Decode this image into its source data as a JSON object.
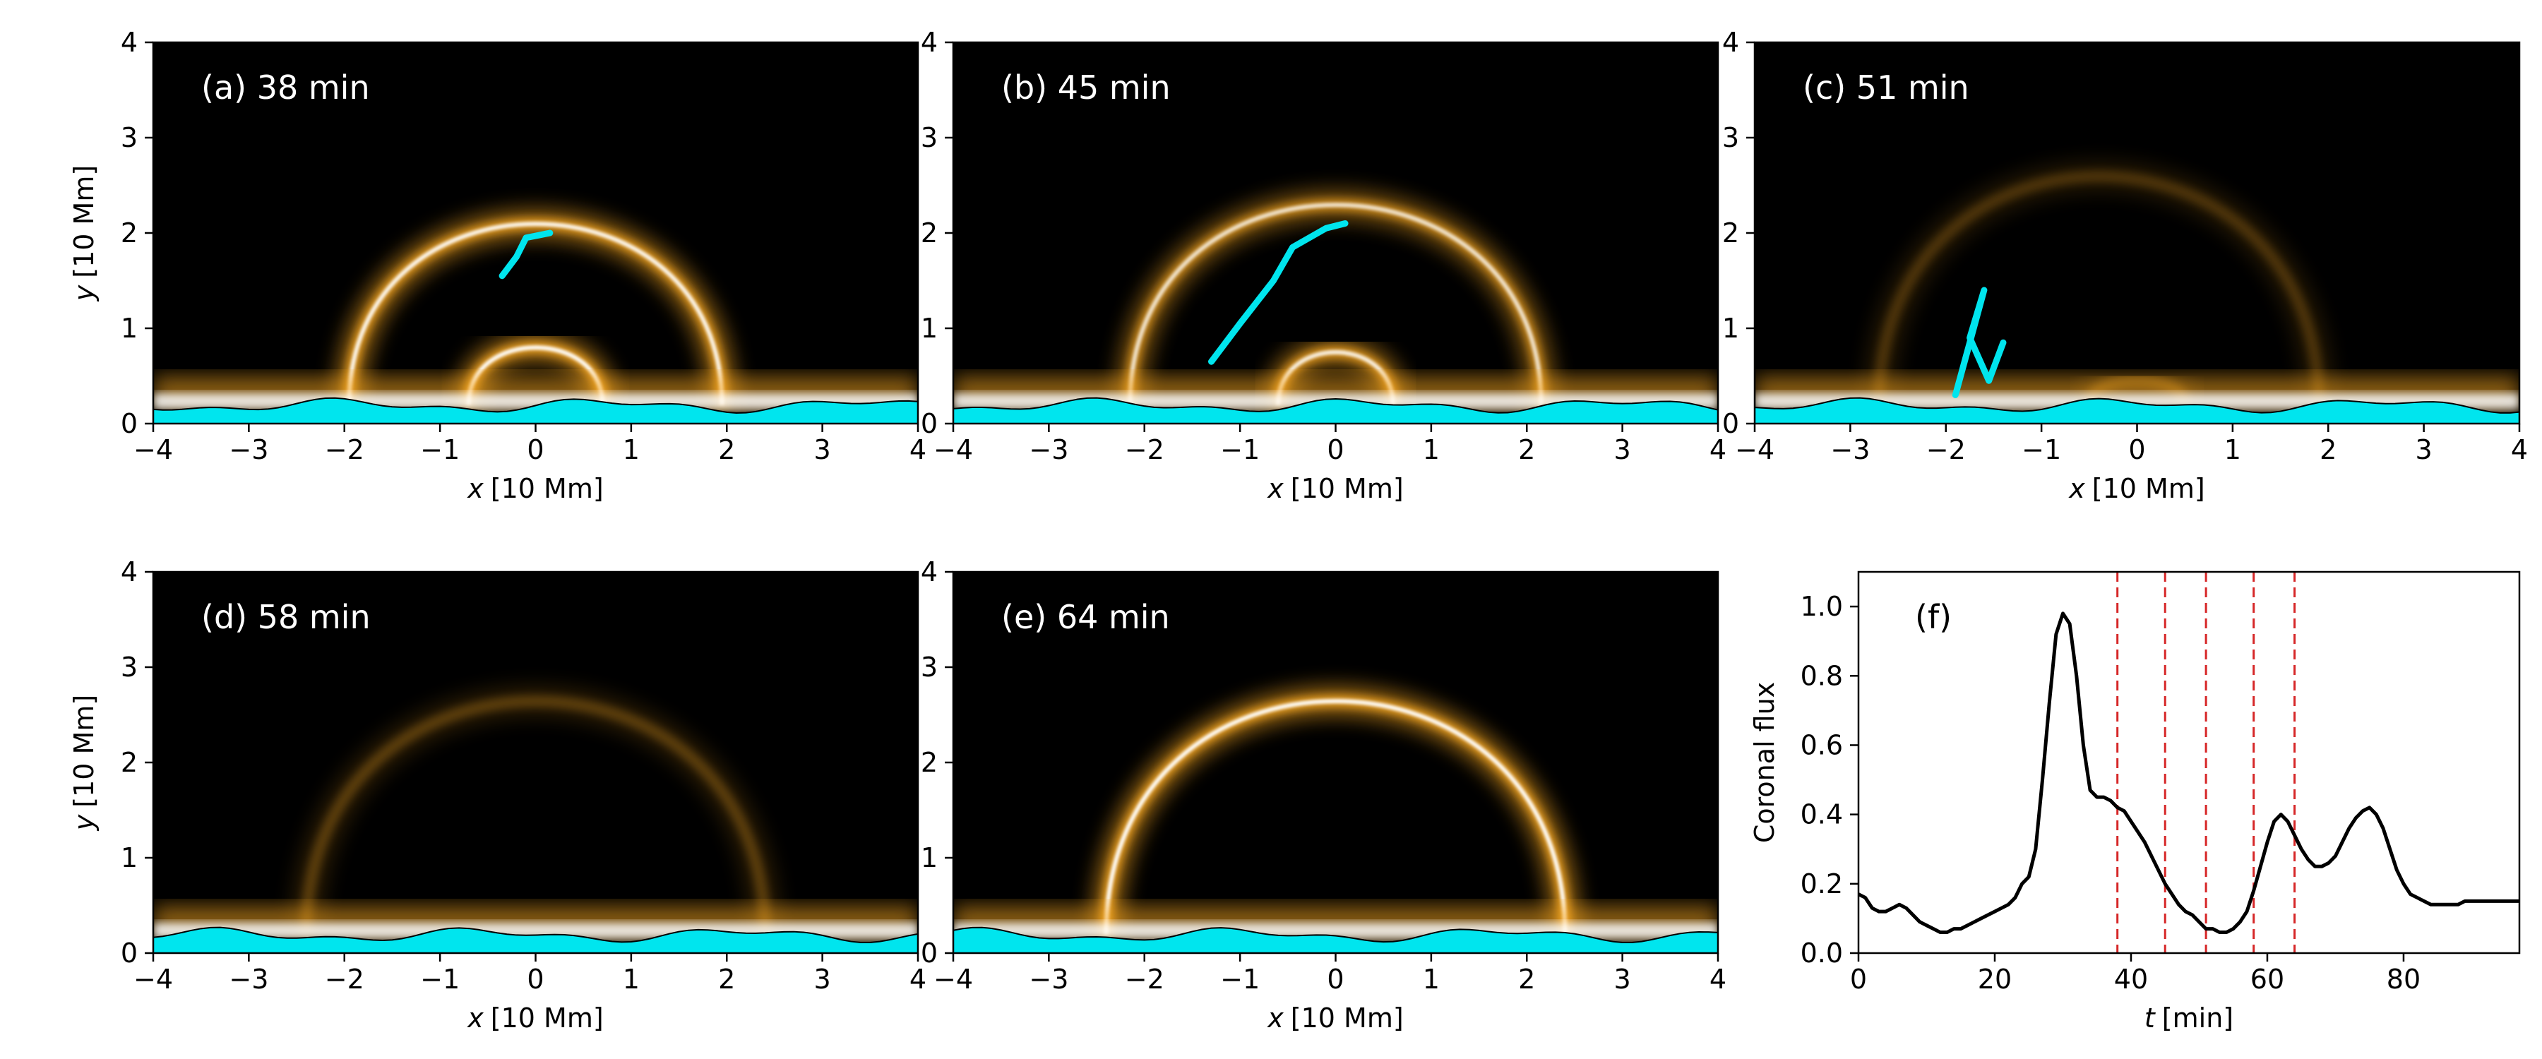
{
  "chart_data": {
    "panels": [
      {
        "id": "a",
        "type": "heatmap",
        "label": "(a) 38 min",
        "time_min": 38,
        "xlabel_var": "x",
        "xlabel_unit": "[10 Mm]",
        "ylabel_var": "y",
        "ylabel_unit": "[10 Mm]",
        "xlim": [
          -4,
          4
        ],
        "ylim": [
          0,
          4
        ],
        "xticks": [
          "−4",
          "−3",
          "−2",
          "−1",
          "0",
          "1",
          "2",
          "3",
          "4"
        ],
        "yticks": [
          "0",
          "1",
          "2",
          "3",
          "4"
        ],
        "loops": [
          {
            "center_x": 0,
            "height": 2.1,
            "half_width": 1.95,
            "brightness": 0.95
          },
          {
            "center_x": 0,
            "height": 0.8,
            "half_width": 0.7,
            "brightness": 1.0
          }
        ],
        "cyan_feature": [
          [
            -0.35,
            1.55
          ],
          [
            -0.2,
            1.75
          ],
          [
            -0.1,
            1.95
          ],
          [
            0.15,
            2.0
          ]
        ]
      },
      {
        "id": "b",
        "type": "heatmap",
        "label": "(b) 45 min",
        "time_min": 45,
        "xlabel_var": "x",
        "xlabel_unit": "[10 Mm]",
        "ylabel_var": "y",
        "ylabel_unit": "[10 Mm]",
        "xlim": [
          -4,
          4
        ],
        "ylim": [
          0,
          4
        ],
        "xticks": [
          "−4",
          "−3",
          "−2",
          "−1",
          "0",
          "1",
          "2",
          "3",
          "4"
        ],
        "yticks": [
          "0",
          "1",
          "2",
          "3",
          "4"
        ],
        "loops": [
          {
            "center_x": 0,
            "height": 2.3,
            "half_width": 2.15,
            "brightness": 0.8
          },
          {
            "center_x": 0,
            "height": 0.75,
            "half_width": 0.6,
            "brightness": 0.9
          }
        ],
        "cyan_feature": [
          [
            -1.3,
            0.65
          ],
          [
            -1.0,
            1.05
          ],
          [
            -0.65,
            1.5
          ],
          [
            -0.45,
            1.85
          ],
          [
            -0.1,
            2.05
          ],
          [
            0.1,
            2.1
          ]
        ]
      },
      {
        "id": "c",
        "type": "heatmap",
        "label": "(c) 51 min",
        "time_min": 51,
        "xlabel_var": "x",
        "xlabel_unit": "[10 Mm]",
        "ylabel_var": "y",
        "ylabel_unit": "[10 Mm]",
        "xlim": [
          -4,
          4
        ],
        "ylim": [
          0,
          4
        ],
        "xticks": [
          "−4",
          "−3",
          "−2",
          "−1",
          "0",
          "1",
          "2",
          "3",
          "4"
        ],
        "yticks": [
          "0",
          "1",
          "2",
          "3",
          "4"
        ],
        "loops": [
          {
            "center_x": -0.4,
            "height": 2.6,
            "half_width": 2.3,
            "brightness": 0.25
          },
          {
            "center_x": 0,
            "height": 0.45,
            "half_width": 0.5,
            "brightness": 0.35
          }
        ],
        "cyan_feature": [
          [
            -1.9,
            0.3
          ],
          [
            -1.75,
            0.85
          ],
          [
            -1.6,
            1.4
          ],
          [
            -1.75,
            0.9
          ],
          [
            -1.55,
            0.45
          ],
          [
            -1.4,
            0.85
          ]
        ]
      },
      {
        "id": "d",
        "type": "heatmap",
        "label": "(d) 58 min",
        "time_min": 58,
        "xlabel_var": "x",
        "xlabel_unit": "[10 Mm]",
        "ylabel_var": "y",
        "ylabel_unit": "[10 Mm]",
        "xlim": [
          -4,
          4
        ],
        "ylim": [
          0,
          4
        ],
        "xticks": [
          "−4",
          "−3",
          "−2",
          "−1",
          "0",
          "1",
          "2",
          "3",
          "4"
        ],
        "yticks": [
          "0",
          "1",
          "2",
          "3",
          "4"
        ],
        "loops": [
          {
            "center_x": 0,
            "height": 2.65,
            "half_width": 2.4,
            "brightness": 0.3
          }
        ],
        "cyan_feature": []
      },
      {
        "id": "e",
        "type": "heatmap",
        "label": "(e) 64 min",
        "time_min": 64,
        "xlabel_var": "x",
        "xlabel_unit": "[10 Mm]",
        "ylabel_var": "y",
        "ylabel_unit": "[10 Mm]",
        "xlim": [
          -4,
          4
        ],
        "ylim": [
          0,
          4
        ],
        "xticks": [
          "−4",
          "−3",
          "−2",
          "−1",
          "0",
          "1",
          "2",
          "3",
          "4"
        ],
        "yticks": [
          "0",
          "1",
          "2",
          "3",
          "4"
        ],
        "loops": [
          {
            "center_x": 0,
            "height": 2.65,
            "half_width": 2.4,
            "brightness": 1.0
          }
        ],
        "cyan_feature": []
      }
    ],
    "line_panel": {
      "id": "f",
      "type": "line",
      "label": "(f)",
      "xlabel_var": "t",
      "xlabel_unit": "[min]",
      "ylabel": "Coronal flux",
      "xlim": [
        0,
        97
      ],
      "ylim": [
        0,
        1.1
      ],
      "xticks": [
        "0",
        "20",
        "40",
        "60",
        "80"
      ],
      "yticks": [
        "0.0",
        "0.2",
        "0.4",
        "0.6",
        "0.8",
        "1.0"
      ],
      "x": [
        0,
        1,
        2,
        3,
        4,
        5,
        6,
        7,
        8,
        9,
        10,
        11,
        12,
        13,
        14,
        15,
        16,
        17,
        18,
        19,
        20,
        21,
        22,
        23,
        24,
        25,
        26,
        27,
        28,
        29,
        30,
        31,
        32,
        33,
        34,
        35,
        36,
        37,
        38,
        39,
        40,
        41,
        42,
        43,
        44,
        45,
        46,
        47,
        48,
        49,
        50,
        51,
        52,
        53,
        54,
        55,
        56,
        57,
        58,
        59,
        60,
        61,
        62,
        63,
        64,
        65,
        66,
        67,
        68,
        69,
        70,
        71,
        72,
        73,
        74,
        75,
        76,
        77,
        78,
        79,
        80,
        81,
        82,
        83,
        84,
        85,
        86,
        87,
        88,
        89,
        90,
        91,
        92,
        93,
        94,
        95,
        96,
        97
      ],
      "y": [
        0.17,
        0.16,
        0.13,
        0.12,
        0.12,
        0.13,
        0.14,
        0.13,
        0.11,
        0.09,
        0.08,
        0.07,
        0.06,
        0.06,
        0.07,
        0.07,
        0.08,
        0.09,
        0.1,
        0.11,
        0.12,
        0.13,
        0.14,
        0.16,
        0.2,
        0.22,
        0.3,
        0.5,
        0.72,
        0.92,
        0.98,
        0.95,
        0.8,
        0.6,
        0.47,
        0.45,
        0.45,
        0.44,
        0.42,
        0.41,
        0.38,
        0.35,
        0.32,
        0.28,
        0.24,
        0.2,
        0.17,
        0.14,
        0.12,
        0.11,
        0.09,
        0.07,
        0.07,
        0.06,
        0.06,
        0.07,
        0.09,
        0.12,
        0.18,
        0.25,
        0.32,
        0.38,
        0.4,
        0.38,
        0.34,
        0.3,
        0.27,
        0.25,
        0.25,
        0.26,
        0.28,
        0.32,
        0.36,
        0.39,
        0.41,
        0.42,
        0.4,
        0.36,
        0.3,
        0.24,
        0.2,
        0.17,
        0.16,
        0.15,
        0.14,
        0.14,
        0.14,
        0.14,
        0.14,
        0.15,
        0.15,
        0.15,
        0.15,
        0.15,
        0.15,
        0.15,
        0.15,
        0.15
      ],
      "vlines": [
        38,
        45,
        51,
        58,
        64
      ],
      "line_color": "#000000",
      "vline_color": "#d62728"
    },
    "colors": {
      "background": "#000000",
      "glow": "#f5a623",
      "core": "#ffffff",
      "cyan": "#00e5ee"
    }
  }
}
